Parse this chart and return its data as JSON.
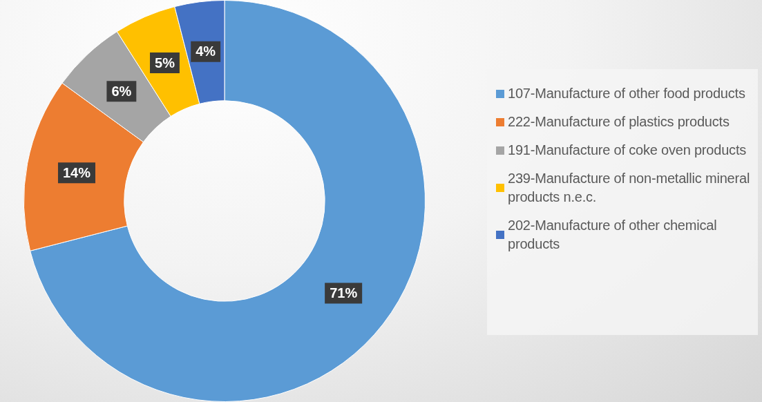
{
  "chart_data": {
    "type": "donut",
    "categories": [
      "107-Manufacture of other food products",
      "222-Manufacture of plastics products",
      "191-Manufacture of coke oven products",
      "239-Manufacture of non-metallic mineral products n.e.c.",
      "202-Manufacture of other chemical products"
    ],
    "values": [
      71,
      14,
      6,
      5,
      4
    ],
    "colors": [
      "#5b9bd5",
      "#ed7d31",
      "#a5a5a5",
      "#ffc000",
      "#4472c4"
    ],
    "value_labels": [
      "71%",
      "14%",
      "6%",
      "5%",
      "4%"
    ],
    "legend": "right"
  }
}
